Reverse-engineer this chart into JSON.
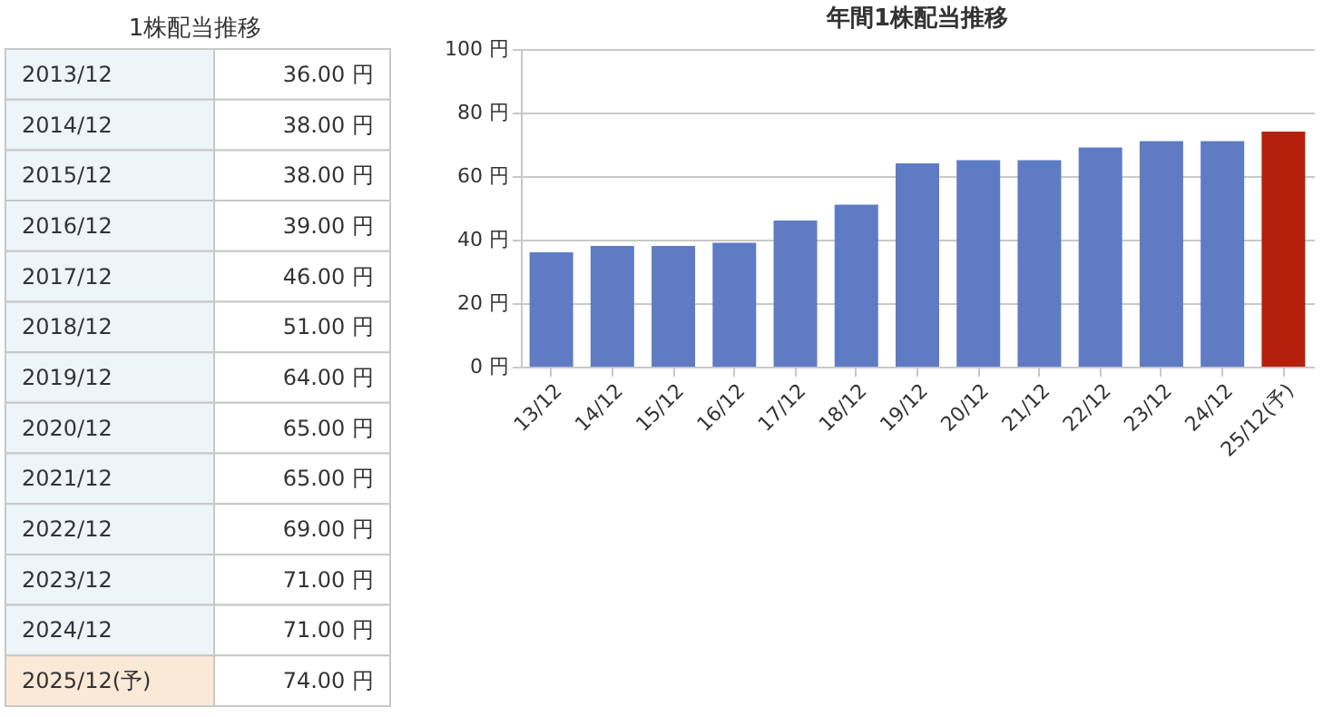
{
  "chart_data": [
    {
      "type": "other",
      "title": "1株配当推移",
      "categories": [
        "2013/12",
        "2014/12",
        "2015/12",
        "2016/12",
        "2017/12",
        "2018/12",
        "2019/12",
        "2020/12",
        "2021/12",
        "2022/12",
        "2023/12",
        "2024/12",
        "2025/12(予)"
      ],
      "value_labels": [
        "36.00 円",
        "38.00 円",
        "38.00 円",
        "39.00 円",
        "46.00 円",
        "51.00 円",
        "64.00 円",
        "65.00 円",
        "65.00 円",
        "69.00 円",
        "71.00 円",
        "71.00 円",
        "74.00 円"
      ],
      "colors": [
        "#edf5f8",
        "#edf5f8",
        "#edf5f8",
        "#edf5f8",
        "#edf5f8",
        "#edf5f8",
        "#edf5f8",
        "#edf5f8",
        "#edf5f8",
        "#edf5f8",
        "#edf5f8",
        "#edf5f8",
        "#fbe9d8"
      ]
    },
    {
      "type": "bar",
      "title": "年間1株配当推移",
      "categories": [
        "13/12",
        "14/12",
        "15/12",
        "16/12",
        "17/12",
        "18/12",
        "19/12",
        "20/12",
        "21/12",
        "22/12",
        "23/12",
        "24/12",
        "25/12(予)"
      ],
      "values": [
        36,
        38,
        38,
        39,
        46,
        51,
        64,
        65,
        65,
        69,
        71,
        71,
        74
      ],
      "colors": [
        "#5f7bc4",
        "#5f7bc4",
        "#5f7bc4",
        "#5f7bc4",
        "#5f7bc4",
        "#5f7bc4",
        "#5f7bc4",
        "#5f7bc4",
        "#5f7bc4",
        "#5f7bc4",
        "#5f7bc4",
        "#5f7bc4",
        "#b5200d"
      ],
      "ylim": [
        0,
        100
      ],
      "yticks": [
        {
          "value": 0,
          "label": "0 円"
        },
        {
          "value": 20,
          "label": "20 円"
        },
        {
          "value": 40,
          "label": "40 円"
        },
        {
          "value": 60,
          "label": "60 円"
        },
        {
          "value": 80,
          "label": "80 円"
        },
        {
          "value": 100,
          "label": "100 円"
        }
      ],
      "grid": "y"
    }
  ]
}
